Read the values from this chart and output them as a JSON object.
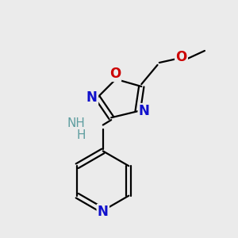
{
  "background_color": "#ebebeb",
  "figsize": [
    3.0,
    3.0
  ],
  "dpi": 100,
  "xlim": [
    -1.8,
    2.5
  ],
  "ylim": [
    -0.3,
    4.8
  ]
}
